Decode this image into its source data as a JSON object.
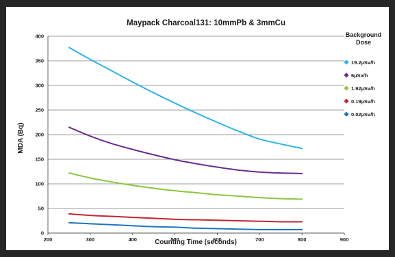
{
  "chart_data": {
    "type": "line",
    "title": "Maypack Charcoal131: 10mmPb & 3mmCu",
    "xlabel": "Counting Time (seconds)",
    "ylabel": "MDA (Bq)",
    "xlim": [
      200,
      900
    ],
    "ylim": [
      0,
      400
    ],
    "x_ticks": [
      200,
      300,
      400,
      500,
      600,
      700,
      800,
      900
    ],
    "y_ticks": [
      0,
      50,
      100,
      150,
      200,
      250,
      300,
      350,
      400
    ],
    "grid": true,
    "legend_title": "Background Dose",
    "legend_position": "right",
    "x": [
      250,
      300,
      350,
      400,
      450,
      500,
      550,
      600,
      650,
      700,
      750,
      800
    ],
    "series": [
      {
        "name": "19.2µSv/h",
        "color": "#29b5e8",
        "values": [
          377,
          353,
          330,
          307,
          285,
          264,
          244,
          225,
          207,
          191,
          181,
          172
        ]
      },
      {
        "name": "6µSv/h",
        "color": "#6a2c91",
        "values": [
          215,
          197,
          182,
          170,
          159,
          149,
          141,
          134,
          128,
          124,
          122,
          121
        ]
      },
      {
        "name": "1.92µSv/h",
        "color": "#8cc63f",
        "values": [
          122,
          112,
          104,
          97,
          91,
          86,
          82,
          78,
          75,
          72,
          70,
          69
        ]
      },
      {
        "name": "0.19µSv/h",
        "color": "#c1272d",
        "values": [
          39,
          36,
          34,
          32,
          30,
          28,
          27,
          26,
          25,
          24,
          23,
          23
        ]
      },
      {
        "name": "0.02µSv/h",
        "color": "#1c75bc",
        "values": [
          21,
          19,
          17,
          15,
          13,
          12,
          10,
          9,
          8,
          7,
          7,
          7
        ]
      }
    ]
  }
}
